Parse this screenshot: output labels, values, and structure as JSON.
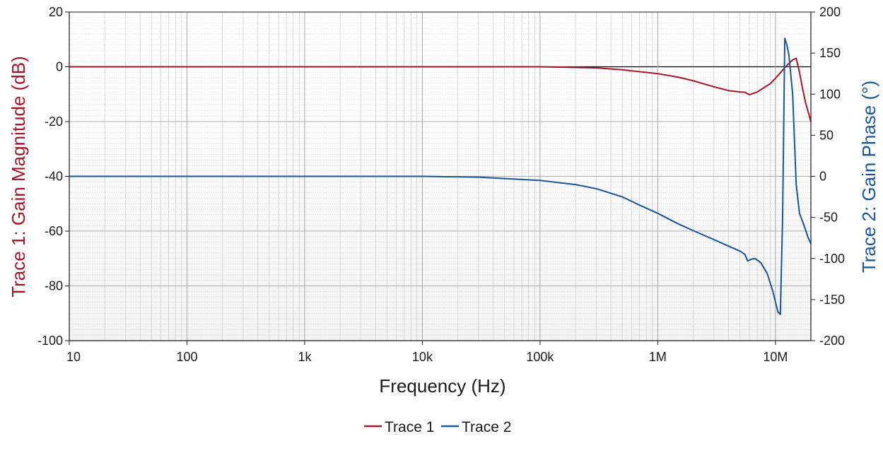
{
  "chart_data": {
    "type": "line",
    "xlabel": "Frequency (Hz)",
    "ylabel_left": "Trace 1: Gain Magnitude (dB)",
    "ylabel_right": "Trace 2: Gain Phase (°)",
    "x_scale": "log",
    "xlim": [
      10,
      20000000
    ],
    "x_ticks": [
      10,
      100,
      1000,
      10000,
      100000,
      1000000,
      10000000
    ],
    "x_tick_labels": [
      "10",
      "100",
      "1k",
      "10k",
      "100k",
      "1M",
      "10M"
    ],
    "ylim_left": [
      -100,
      20
    ],
    "y_left_ticks": [
      20,
      0,
      -20,
      -40,
      -60,
      -80,
      -100
    ],
    "y_left_tick_labels": [
      "20",
      "0",
      "-20",
      "-40",
      "-60",
      "-80",
      "-100"
    ],
    "ylim_right": [
      -200,
      200
    ],
    "y_right_ticks": [
      200,
      150,
      100,
      50,
      0,
      -50,
      -100,
      -150,
      -200
    ],
    "y_right_tick_labels": [
      "200",
      "150",
      "100",
      "50",
      "0",
      "-50",
      "-100",
      "-150",
      "-200"
    ],
    "grid": true,
    "legend_position": "bottom-center",
    "series": [
      {
        "name": "Trace 1",
        "axis": "left",
        "color": "#a3162a",
        "x": [
          10,
          100000,
          300000,
          500000,
          1000000,
          1500000,
          2000000,
          3000000,
          4000000,
          5000000,
          5500000,
          6000000,
          7000000,
          8000000,
          9000000,
          10000000,
          11000000,
          12000000,
          13000000,
          14000000,
          15000000,
          16000000,
          17000000,
          18000000,
          20000000
        ],
        "values": [
          0,
          0,
          -0.4,
          -1.1,
          -2.5,
          -3.8,
          -5.1,
          -7.3,
          -8.7,
          -9.2,
          -9.3,
          -10.2,
          -9.2,
          -7.6,
          -6.2,
          -4.2,
          -2.2,
          -0.3,
          1.2,
          2.5,
          3.1,
          -2,
          -8,
          -13,
          -20
        ]
      },
      {
        "name": "Trace 2",
        "axis": "right",
        "color": "#1a5596",
        "x": [
          10,
          10000,
          30000,
          100000,
          200000,
          300000,
          500000,
          700000,
          1000000,
          1500000,
          2000000,
          3000000,
          4000000,
          5000000,
          5500000,
          5800000,
          6200000,
          6700000,
          7500000,
          8500000,
          9500000,
          10500000,
          11000000,
          11500000,
          12000000,
          12500000,
          13000000,
          14000000,
          15000000,
          16000000,
          17000000,
          18000000,
          19000000,
          20000000
        ],
        "values": [
          0,
          0,
          -1,
          -5,
          -10,
          -15,
          -25,
          -35,
          -45,
          -58,
          -66,
          -77,
          -85,
          -91,
          -95,
          -103,
          -101,
          -100,
          -105,
          -118,
          -140,
          -165,
          -168,
          -50,
          168,
          160,
          148,
          100,
          -10,
          -45,
          -55,
          -65,
          -75,
          -82
        ]
      }
    ]
  }
}
